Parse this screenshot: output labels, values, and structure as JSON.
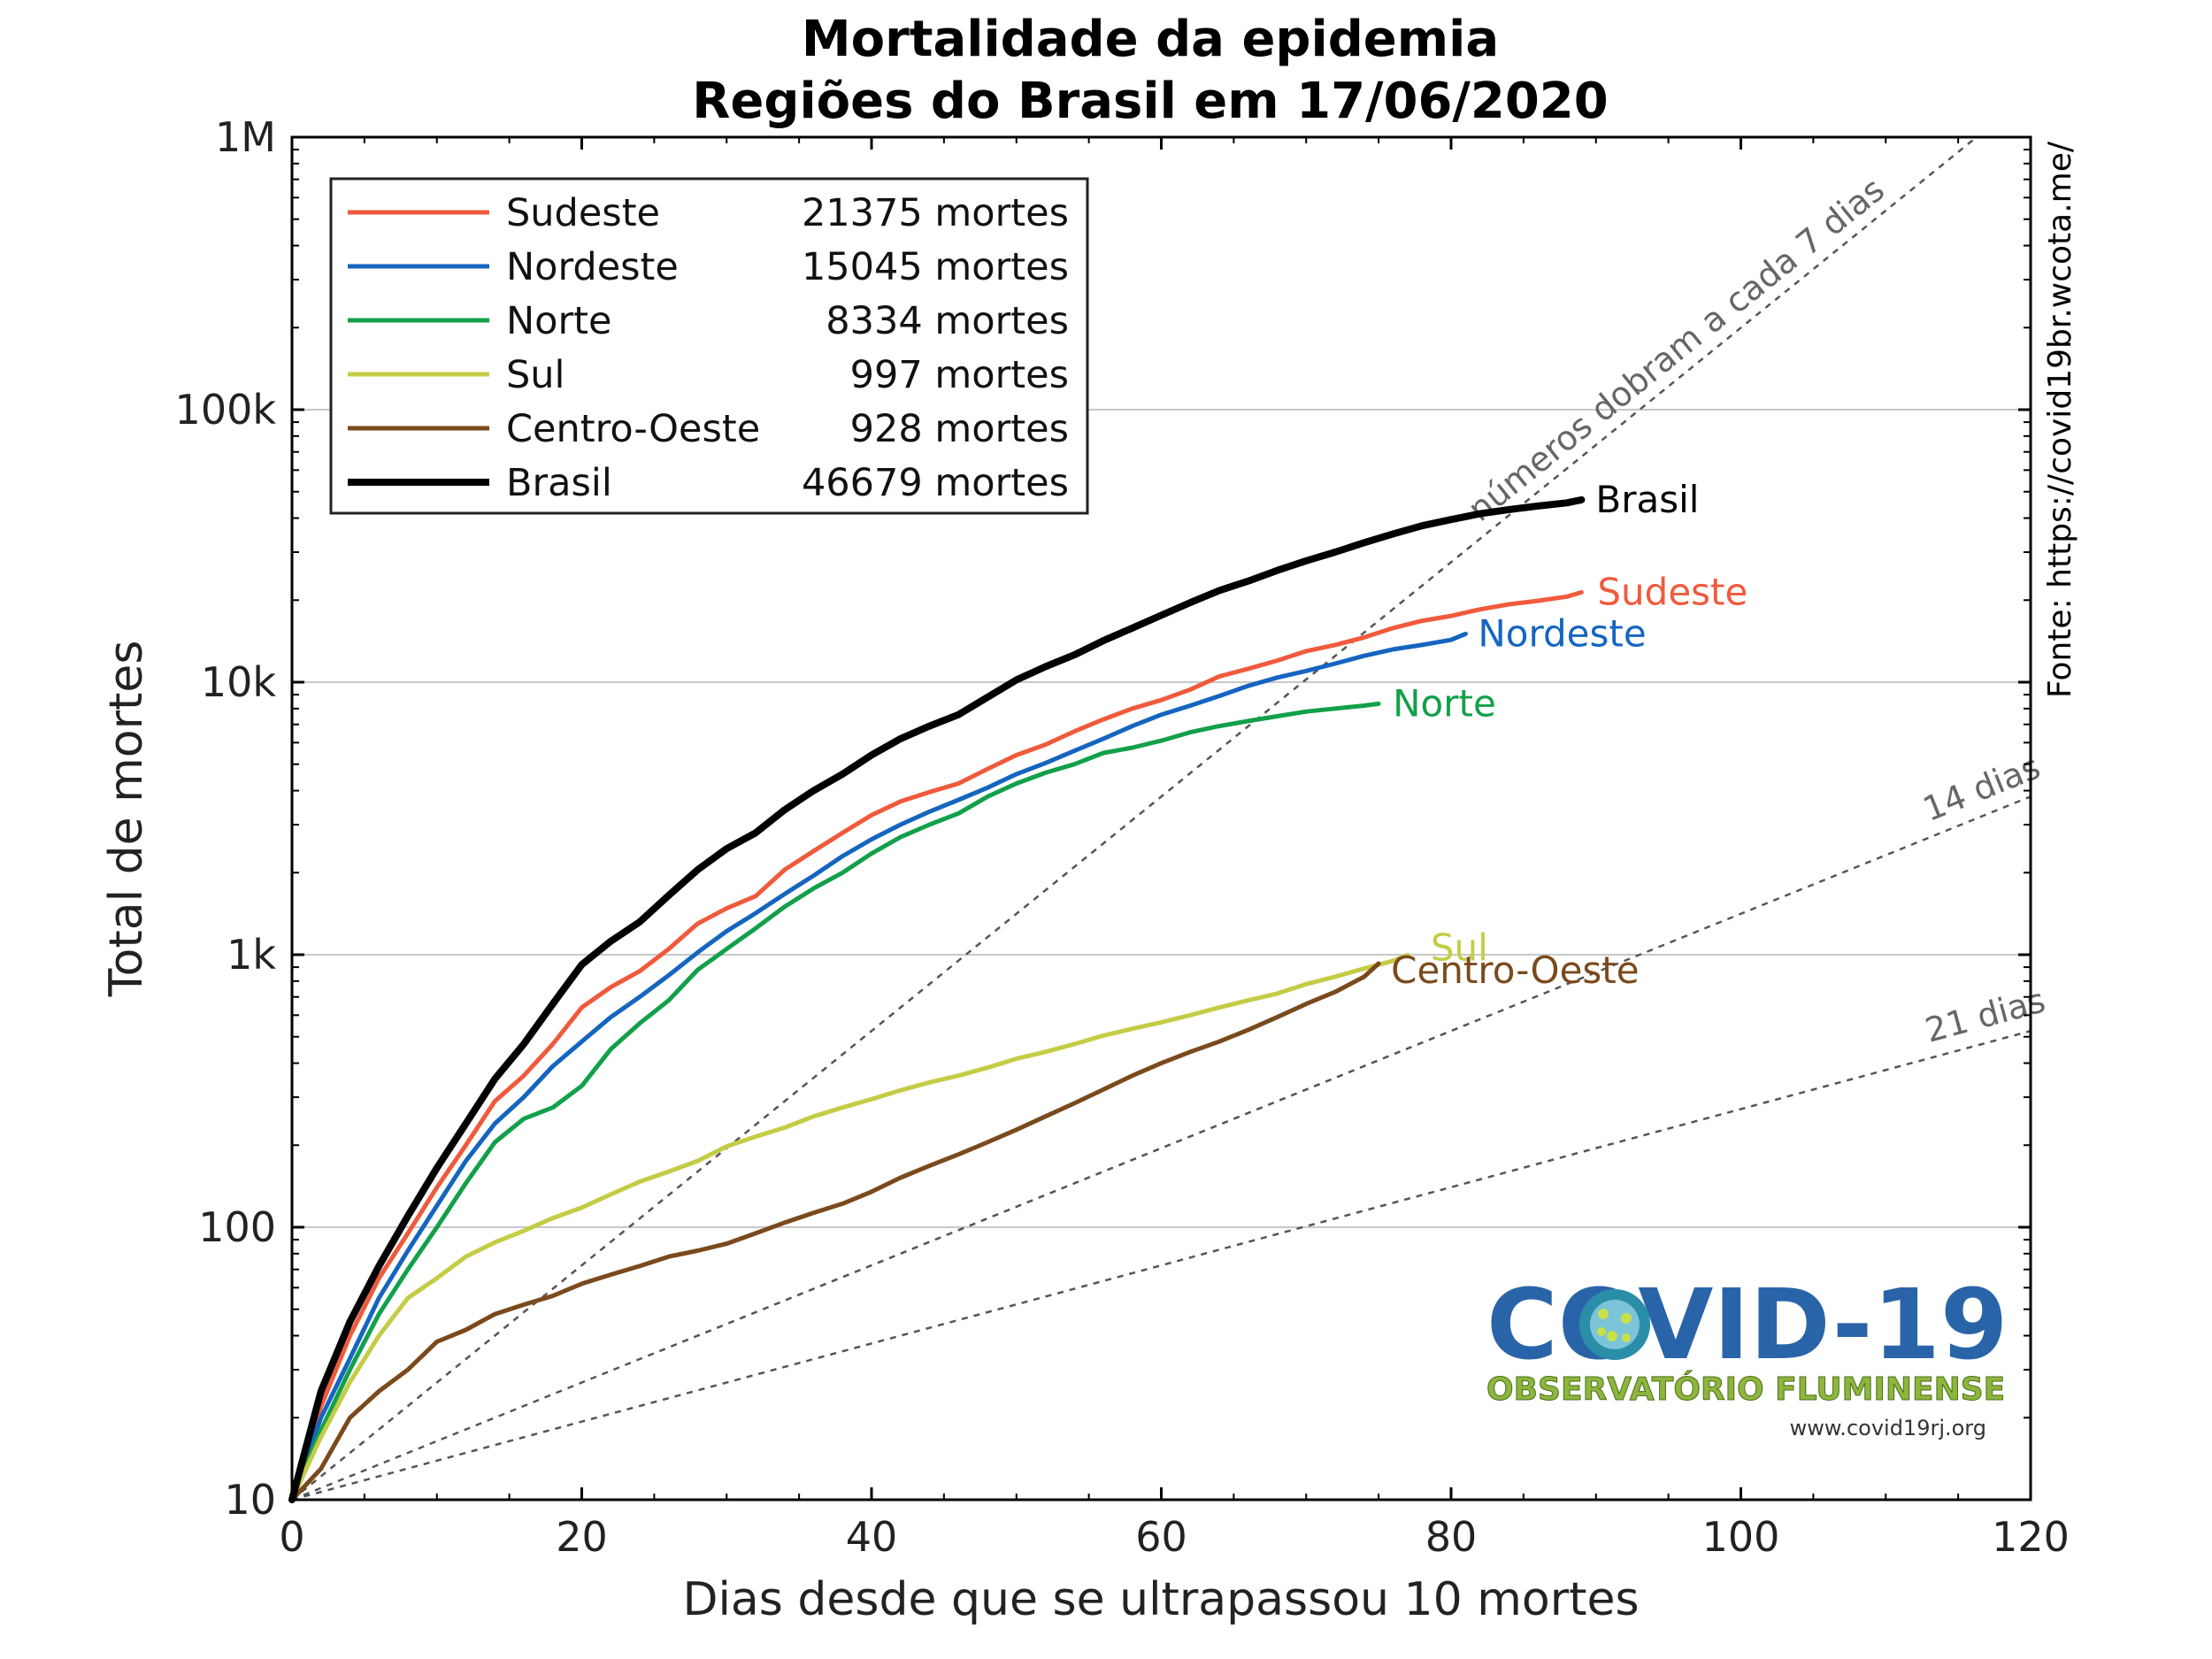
{
  "chart_data": {
    "type": "line",
    "title": "Mortalidade da epidemia",
    "subtitle": "Regiões do Brasil em 17/06/2020",
    "xlabel": "Dias desde que se ultrapassou 10 mortes",
    "ylabel": "Total de mortes",
    "xlim": [
      0,
      120
    ],
    "ylim": [
      10,
      1000000
    ],
    "yscale": "log",
    "xticks": [
      0,
      20,
      40,
      60,
      80,
      100,
      120
    ],
    "yticks": [
      {
        "value": 10,
        "label": "10"
      },
      {
        "value": 100,
        "label": "100"
      },
      {
        "value": 1000,
        "label": "1k"
      },
      {
        "value": 10000,
        "label": "10k"
      },
      {
        "value": 100000,
        "label": "100k"
      },
      {
        "value": 1000000,
        "label": "1M"
      }
    ],
    "grid": "horizontal",
    "legend_position": "top-left",
    "source": "Fonte: https://covid19br.wcota.me/",
    "series": [
      {
        "name": "Sudeste",
        "legend_value": "21375 mortes",
        "color": "#f05a3c",
        "points": [
          [
            0,
            10
          ],
          [
            2,
            22
          ],
          [
            4,
            40
          ],
          [
            6,
            65
          ],
          [
            8,
            95
          ],
          [
            10,
            140
          ],
          [
            12,
            200
          ],
          [
            14,
            290
          ],
          [
            16,
            360
          ],
          [
            18,
            470
          ],
          [
            20,
            640
          ],
          [
            22,
            760
          ],
          [
            24,
            870
          ],
          [
            26,
            1050
          ],
          [
            28,
            1300
          ],
          [
            30,
            1480
          ],
          [
            32,
            1640
          ],
          [
            34,
            2050
          ],
          [
            36,
            2400
          ],
          [
            38,
            2800
          ],
          [
            40,
            3250
          ],
          [
            42,
            3650
          ],
          [
            44,
            3950
          ],
          [
            46,
            4250
          ],
          [
            48,
            4800
          ],
          [
            50,
            5400
          ],
          [
            52,
            5900
          ],
          [
            54,
            6600
          ],
          [
            56,
            7300
          ],
          [
            58,
            8000
          ],
          [
            60,
            8600
          ],
          [
            62,
            9400
          ],
          [
            64,
            10500
          ],
          [
            66,
            11200
          ],
          [
            68,
            12000
          ],
          [
            70,
            13000
          ],
          [
            72,
            13700
          ],
          [
            74,
            14600
          ],
          [
            76,
            15800
          ],
          [
            78,
            16800
          ],
          [
            80,
            17500
          ],
          [
            82,
            18500
          ],
          [
            84,
            19300
          ],
          [
            86,
            19900
          ],
          [
            88,
            20600
          ],
          [
            89,
            21375
          ]
        ]
      },
      {
        "name": "Nordeste",
        "legend_value": "15045 mortes",
        "color": "#1565c0",
        "points": [
          [
            0,
            10
          ],
          [
            2,
            20
          ],
          [
            4,
            33
          ],
          [
            6,
            55
          ],
          [
            8,
            82
          ],
          [
            10,
            120
          ],
          [
            12,
            175
          ],
          [
            14,
            240
          ],
          [
            16,
            300
          ],
          [
            18,
            390
          ],
          [
            20,
            480
          ],
          [
            22,
            590
          ],
          [
            24,
            700
          ],
          [
            26,
            840
          ],
          [
            28,
            1020
          ],
          [
            30,
            1220
          ],
          [
            32,
            1420
          ],
          [
            34,
            1670
          ],
          [
            36,
            1950
          ],
          [
            38,
            2300
          ],
          [
            40,
            2650
          ],
          [
            42,
            3000
          ],
          [
            44,
            3350
          ],
          [
            46,
            3700
          ],
          [
            48,
            4100
          ],
          [
            50,
            4600
          ],
          [
            52,
            5050
          ],
          [
            54,
            5600
          ],
          [
            56,
            6200
          ],
          [
            58,
            6900
          ],
          [
            60,
            7600
          ],
          [
            62,
            8200
          ],
          [
            64,
            8900
          ],
          [
            66,
            9700
          ],
          [
            68,
            10400
          ],
          [
            70,
            11000
          ],
          [
            72,
            11700
          ],
          [
            74,
            12500
          ],
          [
            76,
            13200
          ],
          [
            78,
            13700
          ],
          [
            80,
            14300
          ],
          [
            81,
            15045
          ]
        ]
      },
      {
        "name": "Norte",
        "legend_value": "8334 mortes",
        "color": "#12a04a",
        "points": [
          [
            0,
            10
          ],
          [
            2,
            18
          ],
          [
            4,
            30
          ],
          [
            6,
            48
          ],
          [
            8,
            70
          ],
          [
            10,
            100
          ],
          [
            12,
            145
          ],
          [
            14,
            205
          ],
          [
            16,
            250
          ],
          [
            18,
            275
          ],
          [
            20,
            330
          ],
          [
            22,
            450
          ],
          [
            24,
            560
          ],
          [
            26,
            680
          ],
          [
            28,
            880
          ],
          [
            30,
            1050
          ],
          [
            32,
            1250
          ],
          [
            34,
            1500
          ],
          [
            36,
            1750
          ],
          [
            38,
            2000
          ],
          [
            40,
            2350
          ],
          [
            42,
            2700
          ],
          [
            44,
            3000
          ],
          [
            46,
            3300
          ],
          [
            48,
            3800
          ],
          [
            50,
            4250
          ],
          [
            52,
            4650
          ],
          [
            54,
            5000
          ],
          [
            56,
            5500
          ],
          [
            58,
            5750
          ],
          [
            60,
            6100
          ],
          [
            62,
            6550
          ],
          [
            64,
            6900
          ],
          [
            66,
            7200
          ],
          [
            68,
            7500
          ],
          [
            70,
            7800
          ],
          [
            72,
            8000
          ],
          [
            74,
            8200
          ],
          [
            75,
            8334
          ]
        ]
      },
      {
        "name": "Sul",
        "legend_value": "997 mortes",
        "color": "#c4cc46",
        "points": [
          [
            0,
            10
          ],
          [
            2,
            17
          ],
          [
            4,
            27
          ],
          [
            6,
            40
          ],
          [
            8,
            55
          ],
          [
            10,
            65
          ],
          [
            12,
            78
          ],
          [
            14,
            88
          ],
          [
            16,
            97
          ],
          [
            18,
            108
          ],
          [
            20,
            118
          ],
          [
            22,
            132
          ],
          [
            24,
            147
          ],
          [
            26,
            160
          ],
          [
            28,
            175
          ],
          [
            30,
            198
          ],
          [
            32,
            215
          ],
          [
            34,
            232
          ],
          [
            36,
            255
          ],
          [
            38,
            275
          ],
          [
            40,
            295
          ],
          [
            42,
            318
          ],
          [
            44,
            340
          ],
          [
            46,
            360
          ],
          [
            48,
            385
          ],
          [
            50,
            415
          ],
          [
            52,
            440
          ],
          [
            54,
            470
          ],
          [
            56,
            505
          ],
          [
            58,
            535
          ],
          [
            60,
            565
          ],
          [
            62,
            600
          ],
          [
            64,
            640
          ],
          [
            66,
            680
          ],
          [
            68,
            720
          ],
          [
            70,
            780
          ],
          [
            72,
            830
          ],
          [
            74,
            890
          ],
          [
            76,
            950
          ],
          [
            77,
            997
          ]
        ]
      },
      {
        "name": "Centro-Oeste",
        "legend_value": "928 mortes",
        "color": "#7a4a1c",
        "points": [
          [
            0,
            10
          ],
          [
            2,
            13
          ],
          [
            4,
            20
          ],
          [
            6,
            25
          ],
          [
            8,
            30
          ],
          [
            10,
            38
          ],
          [
            12,
            42
          ],
          [
            14,
            48
          ],
          [
            16,
            52
          ],
          [
            18,
            56
          ],
          [
            20,
            62
          ],
          [
            22,
            67
          ],
          [
            24,
            72
          ],
          [
            26,
            78
          ],
          [
            28,
            82
          ],
          [
            30,
            87
          ],
          [
            32,
            95
          ],
          [
            34,
            104
          ],
          [
            36,
            113
          ],
          [
            38,
            122
          ],
          [
            40,
            135
          ],
          [
            42,
            152
          ],
          [
            44,
            168
          ],
          [
            46,
            185
          ],
          [
            48,
            205
          ],
          [
            50,
            228
          ],
          [
            52,
            255
          ],
          [
            54,
            285
          ],
          [
            56,
            320
          ],
          [
            58,
            360
          ],
          [
            60,
            400
          ],
          [
            62,
            440
          ],
          [
            64,
            480
          ],
          [
            66,
            530
          ],
          [
            68,
            590
          ],
          [
            70,
            660
          ],
          [
            72,
            730
          ],
          [
            74,
            830
          ],
          [
            75,
            928
          ]
        ]
      },
      {
        "name": "Brasil",
        "legend_value": "46679 mortes",
        "color": "#000000",
        "points": [
          [
            0,
            10
          ],
          [
            2,
            25
          ],
          [
            4,
            45
          ],
          [
            6,
            72
          ],
          [
            8,
            110
          ],
          [
            10,
            165
          ],
          [
            12,
            240
          ],
          [
            14,
            350
          ],
          [
            16,
            470
          ],
          [
            18,
            660
          ],
          [
            20,
            920
          ],
          [
            22,
            1120
          ],
          [
            24,
            1320
          ],
          [
            26,
            1650
          ],
          [
            28,
            2050
          ],
          [
            30,
            2450
          ],
          [
            32,
            2800
          ],
          [
            34,
            3400
          ],
          [
            36,
            4000
          ],
          [
            38,
            4600
          ],
          [
            40,
            5400
          ],
          [
            42,
            6200
          ],
          [
            44,
            6900
          ],
          [
            46,
            7600
          ],
          [
            48,
            8800
          ],
          [
            50,
            10200
          ],
          [
            52,
            11400
          ],
          [
            54,
            12600
          ],
          [
            56,
            14200
          ],
          [
            58,
            15800
          ],
          [
            60,
            17600
          ],
          [
            62,
            19600
          ],
          [
            64,
            21700
          ],
          [
            66,
            23500
          ],
          [
            68,
            25700
          ],
          [
            70,
            27900
          ],
          [
            72,
            30000
          ],
          [
            74,
            32500
          ],
          [
            76,
            35000
          ],
          [
            78,
            37500
          ],
          [
            80,
            39500
          ],
          [
            82,
            41500
          ],
          [
            84,
            43000
          ],
          [
            86,
            44300
          ],
          [
            88,
            45500
          ],
          [
            89,
            46679
          ]
        ]
      }
    ],
    "reference_lines": [
      {
        "label": "números dobram a cada 7 dias",
        "doubling_days": 7
      },
      {
        "label": "14 dias",
        "doubling_days": 14
      },
      {
        "label": "21 dias",
        "doubling_days": 21
      }
    ],
    "end_labels": [
      "Brasil",
      "Sudeste",
      "Nordeste",
      "Norte",
      "Sul",
      "Centro-Oeste"
    ]
  },
  "logo": {
    "title": "COVID-19",
    "subtitle": "OBSERVATÓRIO FLUMINENSE",
    "url": "www.covid19rj.org"
  }
}
